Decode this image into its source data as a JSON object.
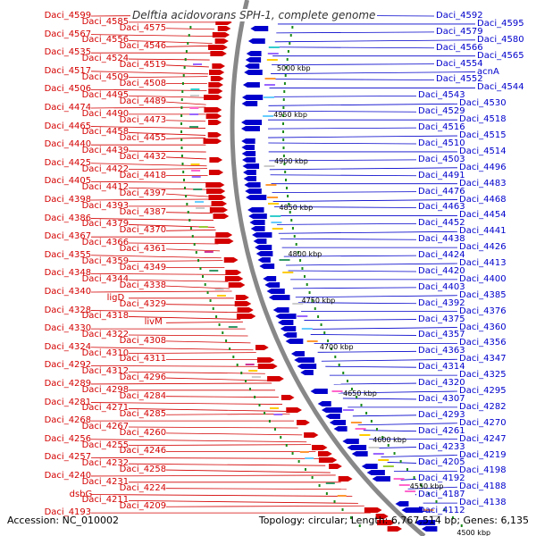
{
  "title": "Delftia acidovorans SPH-1, complete genome",
  "footer": {
    "accession": "Accession: NC_010002",
    "summary": "Topology: circular; Length: 6,767,514 bp; Genes: 6,135"
  },
  "colors": {
    "forward": "#d40000",
    "reverse": "#0000cc",
    "backbone": "#888888",
    "gc": "#1a8a1a"
  },
  "left_labels": [
    "Daci_4599",
    "Daci_4585",
    "Daci_4575",
    "Daci_4567",
    "Daci_4556",
    "Daci_4546",
    "Daci_4535",
    "Daci_4524",
    "Daci_4519",
    "Daci_4517",
    "Daci_4509",
    "Daci_4508",
    "Daci_4506",
    "Daci_4495",
    "Daci_4489",
    "Daci_4474",
    "Daci_4490",
    "Daci_4473",
    "Daci_4465",
    "Daci_4458",
    "Daci_4455",
    "Daci_4440",
    "Daci_4439",
    "Daci_4432",
    "Daci_4425",
    "Daci_4422",
    "Daci_4418",
    "Daci_4405",
    "Daci_4412",
    "Daci_4397",
    "Daci_4398",
    "Daci_4393",
    "Daci_4387",
    "Daci_4386",
    "Daci_4379",
    "Daci_4370",
    "Daci_4367",
    "Daci_4366",
    "Daci_4361",
    "Daci_4355",
    "Daci_4359",
    "Daci_4349",
    "Daci_4348",
    "Daci_4344",
    "Daci_4338",
    "Daci_4340",
    "ligD",
    "Daci_4329",
    "Daci_4328",
    "Daci_4318",
    "livM",
    "Daci_4330",
    "Daci_4322",
    "Daci_4308",
    "Daci_4324",
    "Daci_4310",
    "Daci_4311",
    "Daci_4292",
    "Daci_4312",
    "Daci_4296",
    "Daci_4289",
    "Daci_4298",
    "Daci_4284",
    "Daci_4281",
    "Daci_4271",
    "Daci_4285",
    "Daci_4268",
    "Daci_4267",
    "Daci_4260",
    "Daci_4256",
    "Daci_4255",
    "Daci_4246",
    "Daci_4257",
    "Daci_4232",
    "Daci_4258",
    "Daci_4240",
    "Daci_4231",
    "Daci_4224",
    "dsbG",
    "Daci_4211",
    "Daci_4209",
    "Daci_4193"
  ],
  "right_labels": [
    "Daci_4592",
    "Daci_4595",
    "Daci_4579",
    "Daci_4580",
    "Daci_4566",
    "Daci_4565",
    "Daci_4554",
    "acnA",
    "Daci_4552",
    "Daci_4544",
    "Daci_4543",
    "Daci_4530",
    "Daci_4529",
    "Daci_4518",
    "Daci_4516",
    "Daci_4515",
    "Daci_4510",
    "Daci_4514",
    "Daci_4503",
    "Daci_4496",
    "Daci_4491",
    "Daci_4483",
    "Daci_4476",
    "Daci_4468",
    "Daci_4463",
    "Daci_4454",
    "Daci_4452",
    "Daci_4441",
    "Daci_4438",
    "Daci_4426",
    "Daci_4424",
    "Daci_4413",
    "Daci_4420",
    "Daci_4400",
    "Daci_4403",
    "Daci_4385",
    "Daci_4392",
    "Daci_4376",
    "Daci_4375",
    "Daci_4360",
    "Daci_4357",
    "Daci_4356",
    "Daci_4363",
    "Daci_4347",
    "Daci_4314",
    "Daci_4325",
    "Daci_4320",
    "Daci_4295",
    "Daci_4307",
    "Daci_4282",
    "Daci_4293",
    "Daci_4270",
    "Daci_4261",
    "Daci_4247",
    "Daci_4233",
    "Daci_4219",
    "Daci_4205",
    "Daci_4198",
    "Daci_4192",
    "Daci_4188",
    "Daci_4187",
    "Daci_4138",
    "Daci_4112"
  ],
  "ticks": [
    "5000 kbp",
    "4950 kbp",
    "4900 kbp",
    "4850 kbp",
    "4800 kbp",
    "4750 kbp",
    "4700 kbp",
    "4650 kbp",
    "4600 kbp",
    "4550 kbp",
    "4500 kbp"
  ]
}
